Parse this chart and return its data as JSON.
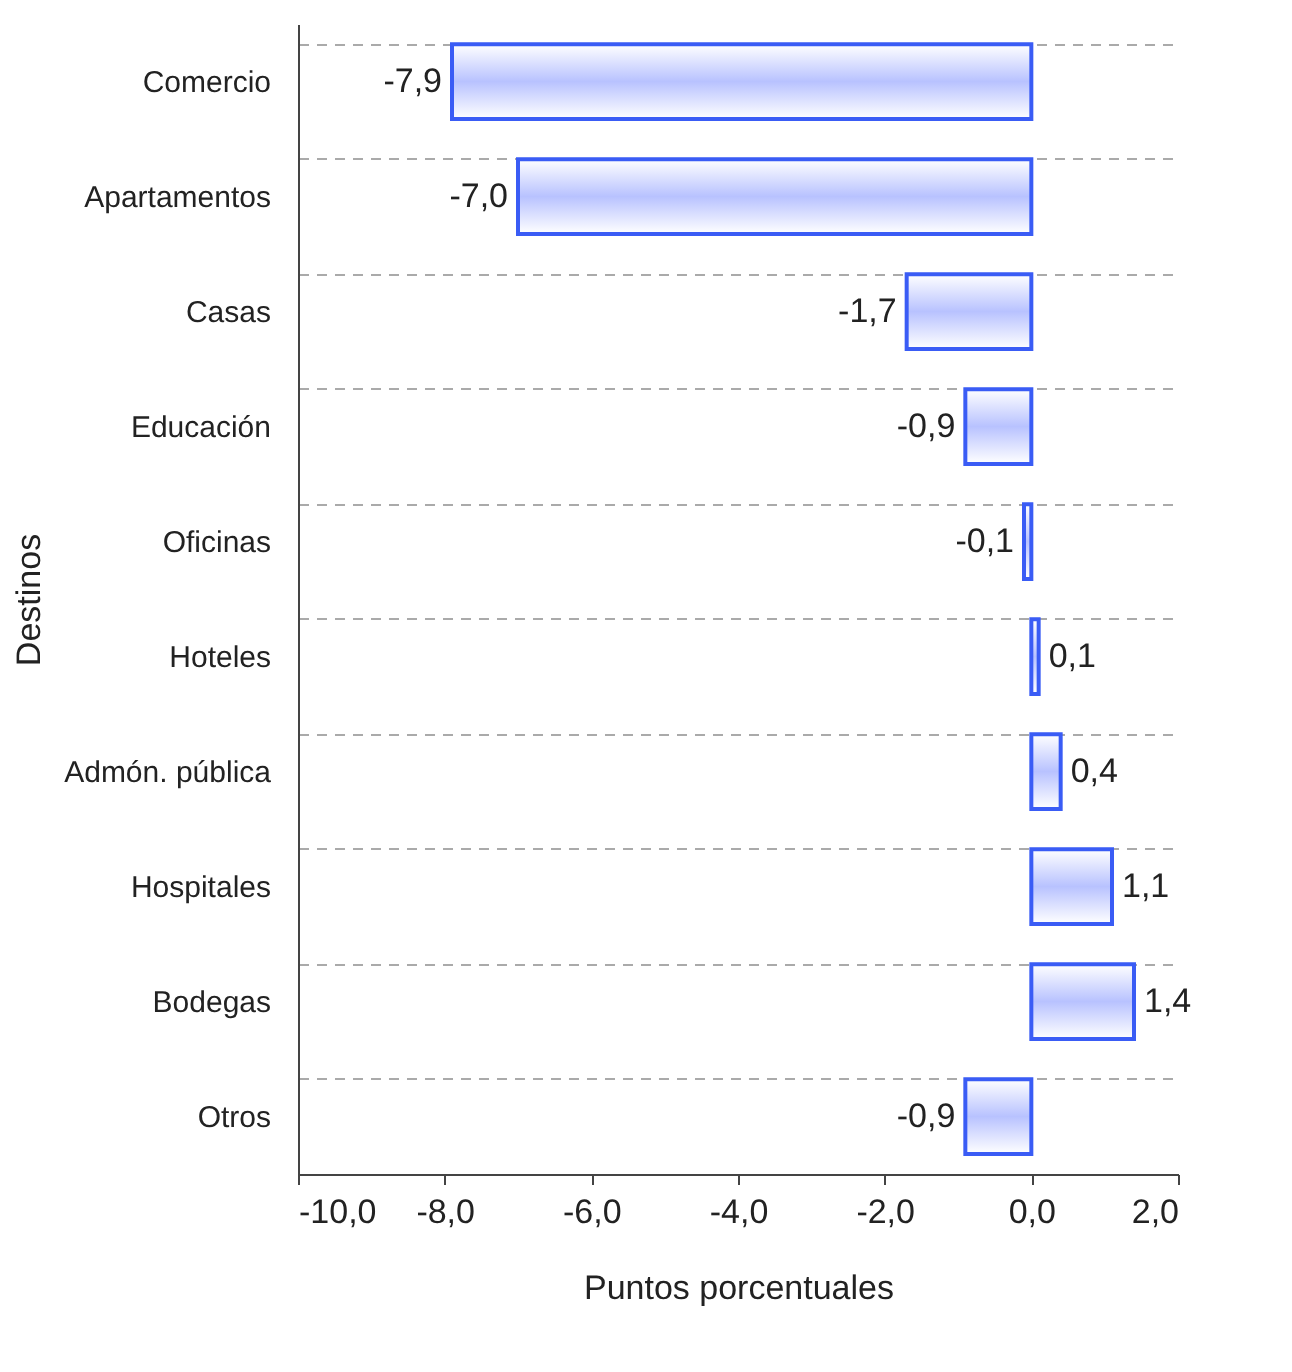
{
  "chart_data": {
    "type": "bar",
    "orientation": "horizontal",
    "xlabel": "Puntos porcentuales",
    "ylabel": "Destinos",
    "categories": [
      "Comercio",
      "Apartamentos",
      "Casas",
      "Educación",
      "Oficinas",
      "Hoteles",
      "Admón. pública",
      "Hospitales",
      "Bodegas",
      "Otros"
    ],
    "values": [
      -7.9,
      -7.0,
      -1.7,
      -0.9,
      -0.1,
      0.1,
      0.4,
      1.1,
      1.4,
      -0.9
    ],
    "value_labels": [
      "-7,9",
      "-7,0",
      "-1,7",
      "-0,9",
      "-0,1",
      "0,1",
      "0,4",
      "1,1",
      "1,4",
      "-0,9"
    ],
    "color": "#3a5cf5",
    "xlim": [
      -10,
      2
    ],
    "xticks": [
      {
        "value": -10,
        "label": "-10,0"
      },
      {
        "value": -8,
        "label": "-8,0"
      },
      {
        "value": -6,
        "label": "-6,0"
      },
      {
        "value": -4,
        "label": "-4,0"
      },
      {
        "value": -2,
        "label": "-2,0"
      },
      {
        "value": 0,
        "label": "0,0"
      },
      {
        "value": 2,
        "label": "2,0"
      }
    ],
    "grid": "y"
  }
}
